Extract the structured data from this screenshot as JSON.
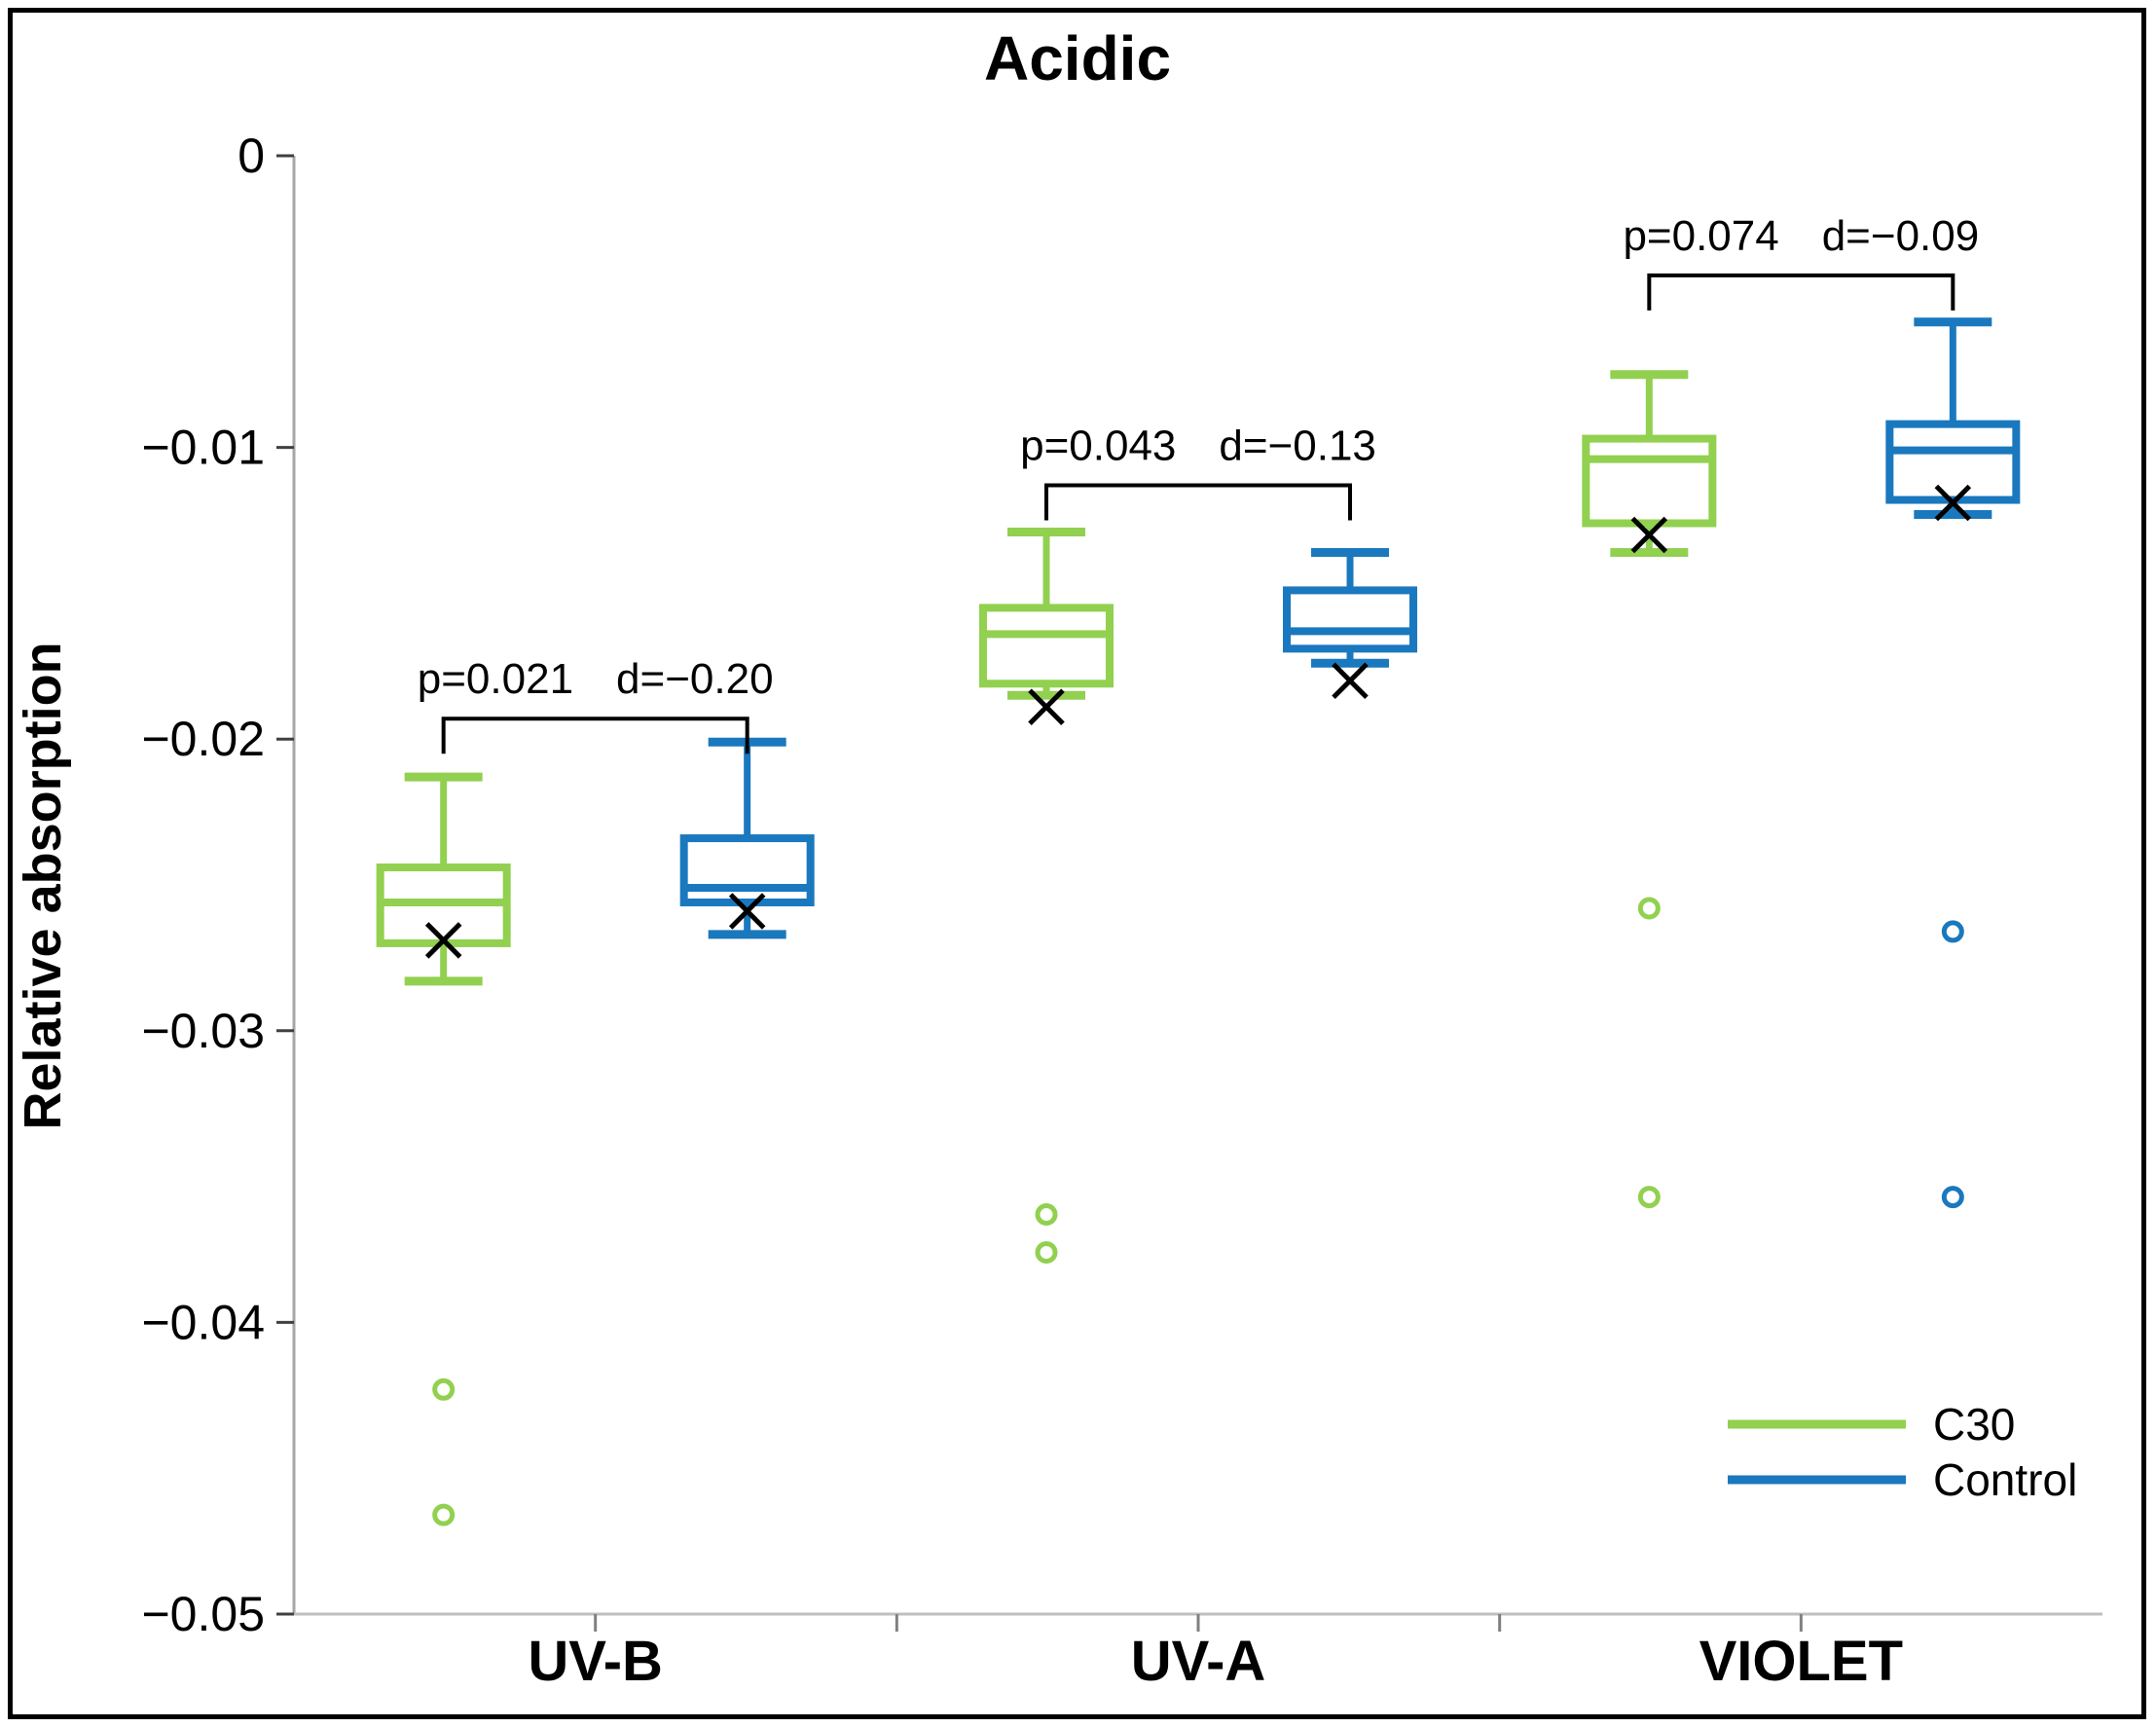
{
  "chart_data": {
    "type": "boxplot",
    "title": "Acidic",
    "ylabel": "Relative absorption",
    "xlabel": "",
    "ylim": [
      -0.05,
      0
    ],
    "grid": false,
    "legend_position": "bottom-right",
    "mean_marker": "x",
    "y_ticks": {
      "values": [
        0,
        -0.01,
        -0.02,
        -0.03,
        -0.04,
        -0.05
      ],
      "labels": [
        "0",
        "−0.01",
        "−0.02",
        "−0.03",
        "−0.04",
        "−0.05"
      ]
    },
    "categories": [
      "UV-B",
      "UV-A",
      "VIOLET"
    ],
    "series": [
      {
        "name": "C30",
        "color": "#92d050"
      },
      {
        "name": "Control",
        "color": "#1a78be"
      }
    ],
    "groups": [
      {
        "category": "UV-B",
        "boxes": [
          {
            "series": "C30",
            "whisker_top": -0.0213,
            "q3": -0.0244,
            "median": -0.0256,
            "q1": -0.027,
            "whisker_bottom": -0.0283,
            "mean": -0.0269,
            "outliers": [
              -0.0423,
              -0.0466
            ]
          },
          {
            "series": "Control",
            "whisker_top": -0.0201,
            "q3": -0.0234,
            "median": -0.0251,
            "q1": -0.0256,
            "whisker_bottom": -0.0267,
            "mean": -0.0259,
            "outliers": []
          }
        ]
      },
      {
        "category": "UV-A",
        "boxes": [
          {
            "series": "C30",
            "whisker_top": -0.0129,
            "q3": -0.0155,
            "median": -0.0164,
            "q1": -0.0181,
            "whisker_bottom": -0.0185,
            "mean": -0.0189,
            "outliers": [
              -0.0363,
              -0.0376
            ]
          },
          {
            "series": "Control",
            "whisker_top": -0.0136,
            "q3": -0.0149,
            "median": -0.0163,
            "q1": -0.0169,
            "whisker_bottom": -0.0174,
            "mean": -0.018,
            "outliers": []
          }
        ]
      },
      {
        "category": "VIOLET",
        "boxes": [
          {
            "series": "C30",
            "whisker_top": -0.0075,
            "q3": -0.0097,
            "median": -0.0104,
            "q1": -0.0126,
            "whisker_bottom": -0.0136,
            "mean": -0.013,
            "outliers": [
              -0.0258,
              -0.0357
            ]
          },
          {
            "series": "Control",
            "whisker_top": -0.0057,
            "q3": -0.0092,
            "median": -0.0101,
            "q1": -0.0118,
            "whisker_bottom": -0.0123,
            "mean": -0.0119,
            "outliers": [
              -0.0266,
              -0.0357
            ]
          }
        ]
      }
    ],
    "annotations": [
      {
        "category": "UV-B",
        "p": "p=0.021",
        "d": "d=−0.20",
        "bar_y": -0.0193
      },
      {
        "category": "UV-A",
        "p": "p=0.043",
        "d": "d=−0.13",
        "bar_y": -0.0113
      },
      {
        "category": "VIOLET",
        "p": "p=0.074",
        "d": "d=−0.09",
        "bar_y": -0.0041
      }
    ]
  }
}
